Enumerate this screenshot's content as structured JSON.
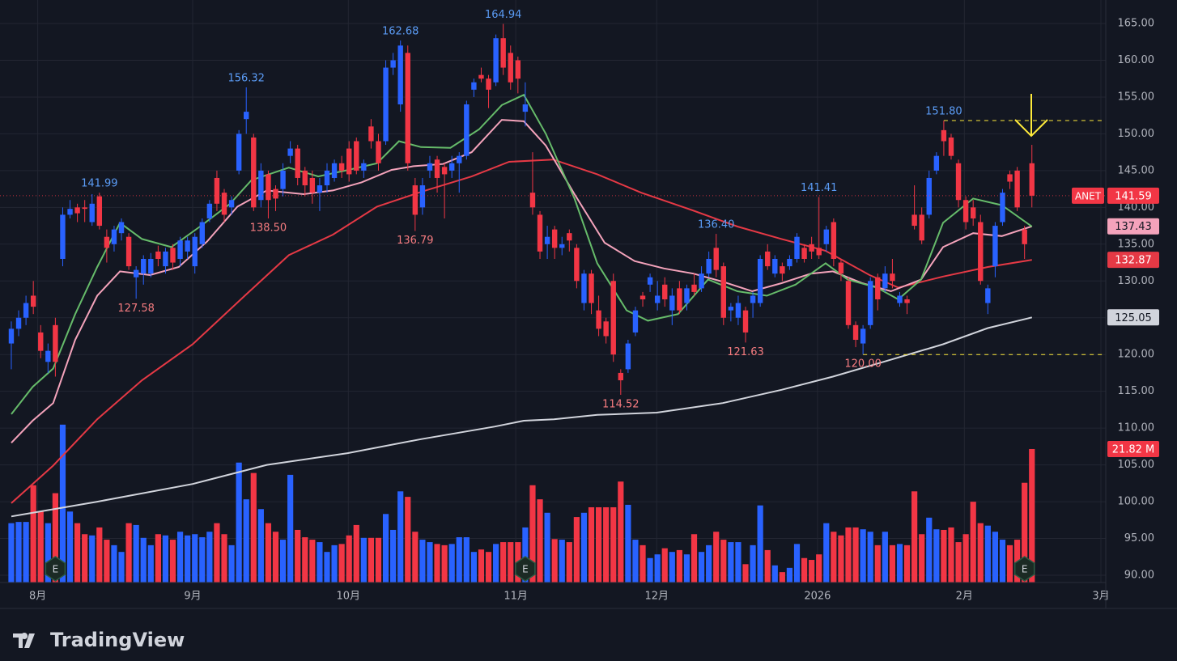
{
  "chart_data": {
    "type": "candlestick",
    "symbol": "ANET",
    "up_color": "#2962ff",
    "down_color": "#f23645",
    "xlim": [
      -1.54,
      149.06
    ],
    "xticks": [
      {
        "value": 3.6,
        "label": "8月"
      },
      {
        "value": 24.7,
        "label": "9月"
      },
      {
        "value": 45.9,
        "label": "10月"
      },
      {
        "value": 68.7,
        "label": "11月"
      },
      {
        "value": 87.9,
        "label": "12月"
      },
      {
        "value": 109.8,
        "label": "2026"
      },
      {
        "value": 129.8,
        "label": "2月"
      },
      {
        "value": 148.4,
        "label": "3月"
      }
    ],
    "ylim": [
      89.01,
      168.19
    ],
    "yticks": [
      {
        "value": 90,
        "label": "90.00"
      },
      {
        "value": 95,
        "label": "95.00"
      },
      {
        "value": 100,
        "label": "100.00"
      },
      {
        "value": 105,
        "label": "105.00"
      },
      {
        "value": 110,
        "label": "110.00"
      },
      {
        "value": 115,
        "label": "115.00"
      },
      {
        "value": 120,
        "label": "120.00"
      },
      {
        "value": 125,
        "label": "125.00"
      },
      {
        "value": 130,
        "label": "130.00"
      },
      {
        "value": 135,
        "label": "135.00"
      },
      {
        "value": 140,
        "label": "140.00"
      },
      {
        "value": 145,
        "label": "145.00"
      },
      {
        "value": 150,
        "label": "150.00"
      },
      {
        "value": 155,
        "label": "155.00"
      },
      {
        "value": 160,
        "label": "160.00"
      },
      {
        "value": 165,
        "label": "165.00"
      }
    ],
    "grid": true,
    "open": [
      121.5,
      123.5,
      125,
      128,
      123,
      119,
      124,
      133,
      139,
      140,
      140,
      138,
      141.5,
      136,
      135,
      136.5,
      136,
      130.5,
      131,
      131,
      134,
      132,
      134.5,
      133,
      134,
      132,
      135,
      138.5,
      144,
      142,
      140,
      145,
      152,
      149.5,
      141,
      144.5,
      142.5,
      142.5,
      147,
      148,
      145,
      144,
      142,
      143,
      144,
      146,
      148,
      149,
      145,
      151,
      149,
      149,
      159,
      154,
      161,
      143,
      140,
      145,
      146.5,
      145.5,
      145,
      146,
      147,
      156,
      158,
      157.5,
      157,
      163,
      161,
      160,
      153,
      142,
      139,
      135,
      137,
      134.5,
      136.5,
      134.5,
      127,
      131,
      126,
      124.5,
      130,
      117.5,
      118,
      123,
      128,
      129.5,
      127,
      129.5,
      126,
      129,
      127,
      129.5,
      129,
      131,
      134.5,
      132,
      126,
      125,
      126,
      127,
      127,
      134,
      131,
      132,
      132,
      133,
      134.5,
      135,
      134.5,
      135,
      138,
      132.5,
      130,
      124,
      121.5,
      124,
      130.5,
      129,
      131,
      127,
      127.5,
      139,
      139,
      139,
      145,
      150.5,
      149.5,
      146,
      141,
      140,
      138,
      127,
      132,
      138,
      144.5,
      145,
      137,
      146
    ],
    "high": [
      124.5,
      126,
      128,
      130,
      124,
      121.5,
      125,
      140,
      141,
      140.5,
      141,
      141.8,
      141.99,
      137,
      137.5,
      138.5,
      136.5,
      132,
      133.5,
      133.8,
      134.8,
      134.5,
      135,
      136,
      136,
      136.5,
      138.5,
      141,
      145,
      142.5,
      141.5,
      150.5,
      156.32,
      150,
      146,
      145,
      143,
      146,
      149,
      148.5,
      145.5,
      145,
      144,
      146,
      146.5,
      147,
      149,
      149.5,
      146.5,
      152,
      150,
      160,
      161,
      162.68,
      162,
      144,
      144,
      147,
      147,
      146,
      147,
      147.5,
      154.5,
      157.5,
      159,
      158,
      163.5,
      164.94,
      162,
      160.5,
      157,
      147.5,
      139.5,
      137.5,
      137.5,
      136,
      137,
      135,
      131.5,
      131.5,
      128,
      125,
      131,
      118,
      122,
      126.5,
      128.5,
      131,
      130,
      130.5,
      129,
      130,
      129.5,
      131,
      132,
      134,
      136.4,
      132.5,
      127,
      128,
      126.5,
      128.5,
      133.5,
      135,
      133.5,
      132.5,
      133.5,
      136.5,
      135,
      136,
      141.41,
      137.5,
      138.5,
      133,
      130.5,
      124.5,
      124,
      130.5,
      131,
      132,
      133,
      128.5,
      128,
      143,
      140,
      145,
      147.5,
      151.8,
      150,
      146.5,
      141.5,
      141,
      139,
      129.5,
      138,
      142.5,
      145,
      145.5,
      137.5,
      148.5
    ],
    "low": [
      118,
      122.5,
      124,
      125.5,
      119.5,
      117.5,
      117,
      132,
      138.5,
      138,
      138,
      137.5,
      137,
      132.5,
      134,
      135.5,
      131.5,
      127.58,
      129.5,
      130.5,
      132,
      131,
      131.5,
      132,
      133,
      131,
      134.5,
      138,
      139.5,
      138,
      139,
      144.5,
      150,
      139.5,
      140,
      138.5,
      139.5,
      141.5,
      146,
      143,
      141.5,
      140.5,
      139.5,
      142,
      143.5,
      144,
      143.5,
      144.5,
      144,
      148,
      145,
      148.5,
      158,
      153,
      145,
      136.79,
      139,
      144,
      142,
      138.5,
      144,
      142,
      146.5,
      155,
      157,
      153.5,
      156.5,
      158,
      156,
      155.5,
      151,
      139,
      133,
      133,
      133,
      133.5,
      134,
      129,
      126,
      125.5,
      122.5,
      121.5,
      119,
      114.52,
      117.5,
      122.5,
      126.5,
      128.5,
      126,
      126.5,
      124,
      125.5,
      126,
      128,
      128.5,
      130.5,
      130.5,
      124,
      124.5,
      124,
      121.63,
      125,
      126.5,
      131.5,
      130.5,
      130,
      131.5,
      132.5,
      132.5,
      133,
      133,
      134,
      132,
      130,
      123.5,
      121,
      120,
      123.5,
      126,
      128.5,
      129,
      126.5,
      125.5,
      137,
      135,
      138.5,
      144.5,
      147,
      146.5,
      140,
      137,
      137.5,
      129.5,
      125.5,
      130.5,
      137.5,
      142.5,
      139.5,
      133,
      140
    ],
    "close": [
      123.5,
      125,
      127,
      126.5,
      120.5,
      120.5,
      119,
      139,
      139.8,
      139.2,
      139.8,
      140.5,
      137.5,
      134.5,
      137,
      138,
      132,
      131.5,
      133,
      133,
      133,
      134,
      132.5,
      135.5,
      135.5,
      136,
      138,
      140.5,
      140.5,
      139,
      141,
      150,
      153,
      140,
      145,
      141,
      141.2,
      145,
      148,
      144,
      143,
      142,
      143,
      145,
      146,
      145,
      144.5,
      145,
      146,
      149,
      146,
      159,
      160,
      162,
      146,
      139,
      143,
      146,
      144,
      144.5,
      146,
      147,
      154,
      157,
      157.5,
      156,
      163,
      159,
      157,
      157.5,
      154,
      140,
      134,
      136,
      134.5,
      135,
      135.5,
      130,
      131,
      127,
      123.5,
      122.5,
      120,
      116.5,
      121.5,
      126,
      127.5,
      130.5,
      128,
      127.5,
      128,
      126,
      129,
      128.5,
      131,
      133,
      131.5,
      125,
      126.5,
      127,
      123,
      128,
      133,
      132,
      133,
      131,
      133,
      136,
      133,
      134,
      133.5,
      137,
      133,
      131,
      124,
      122,
      123.5,
      130,
      127.5,
      131,
      130,
      128,
      127,
      137.5,
      135.5,
      144,
      147,
      149,
      147,
      141,
      138,
      138.5,
      130,
      129,
      137.5,
      142,
      143.5,
      140,
      135,
      141.59
    ],
    "volume": {
      "y2lim": [
        0,
        95.2
      ],
      "tag": "21.82 M",
      "values": [
        9.7,
        9.9,
        9.9,
        15.9,
        11.6,
        9.7,
        14.6,
        25.8,
        11.6,
        9.7,
        7.9,
        7.7,
        9,
        7,
        6.1,
        5,
        9.7,
        9.4,
        7.3,
        6.1,
        7.9,
        7.7,
        7,
        8.3,
        7.7,
        7.9,
        7.4,
        8.3,
        9.7,
        7.9,
        6.1,
        19.6,
        13.6,
        17.9,
        12,
        9.7,
        8.3,
        7,
        17.6,
        8.6,
        7.4,
        7,
        6.6,
        5,
        6.1,
        6.3,
        7.7,
        9.4,
        7.3,
        7.3,
        7.3,
        11.2,
        8.6,
        14.9,
        14,
        8.3,
        7,
        6.6,
        6.3,
        6.1,
        6.3,
        7.4,
        7.4,
        5,
        5.4,
        5,
        6.3,
        6.6,
        6.6,
        6.6,
        9,
        15.9,
        13.6,
        11.4,
        7.1,
        7,
        6.6,
        10.7,
        11.4,
        12.3,
        12.3,
        12.3,
        12.3,
        16.5,
        12.7,
        7,
        6.1,
        4,
        4.6,
        5.6,
        5,
        5.3,
        4.6,
        7.9,
        5,
        6.1,
        8.3,
        7,
        6.6,
        6.6,
        3,
        6.1,
        12.6,
        5.3,
        2.8,
        1.7,
        2.4,
        6.3,
        4,
        3.7,
        4.6,
        9.7,
        8.3,
        7.7,
        9,
        9,
        8.7,
        8.3,
        6.1,
        8.3,
        6.1,
        6.3,
        6.1,
        14.9,
        7.9,
        10.6,
        8.7,
        8.6,
        9,
        6.6,
        7.9,
        13.2,
        9.7,
        9.3,
        8.3,
        7,
        6.1,
        7,
        16.3,
        21.82
      ]
    },
    "moving_averages": [
      {
        "color": "#d1d4dc",
        "tag_text": "#131722",
        "x": [
          0,
          11.7,
          24.7,
          34.8,
          45.8,
          55.8,
          65.8,
          69.8,
          73.9,
          79.8,
          87.9,
          96.9,
          104.9,
          111.9,
          119.8,
          126.9,
          133,
          139
        ],
        "values": [
          98,
          100,
          102.4,
          105,
          106.6,
          108.5,
          110.2,
          111,
          111.2,
          111.8,
          112.1,
          113.4,
          115.2,
          117,
          119.3,
          121.4,
          123.6,
          125.05
        ]
      },
      {
        "color": "#e53945",
        "tag_text": "#ffffff",
        "x": [
          0,
          5.7,
          11.7,
          17.8,
          24.7,
          31.8,
          37.8,
          43.8,
          49.8,
          55.8,
          62.7,
          67.8,
          73.8,
          79.8,
          85.8,
          92.8,
          98.9,
          104.9,
          110.9,
          116.9,
          120.8,
          126.9,
          133,
          139
        ],
        "values": [
          99.8,
          104.9,
          111.2,
          116.5,
          121.4,
          128,
          133.5,
          136.3,
          140.1,
          142.1,
          144.2,
          146.2,
          146.5,
          144.5,
          142,
          139.6,
          137.4,
          135.7,
          134.1,
          130.8,
          129.1,
          130.6,
          131.9,
          132.87
        ]
      },
      {
        "color": "#f4a3bb",
        "tag_text": "#131722",
        "x": [
          0,
          2.9,
          5.7,
          8.7,
          11.7,
          14.8,
          18.9,
          22.8,
          26.7,
          30.8,
          34.8,
          39.8,
          43.8,
          47.7,
          51.8,
          54.8,
          58.8,
          62.7,
          66.8,
          69.8,
          72.8,
          76.7,
          80.8,
          84.9,
          88.9,
          92.9,
          96.9,
          100.9,
          104.9,
          108.9,
          111.9,
          115.9,
          119.8,
          123.9,
          126.9,
          131,
          134.9,
          139
        ],
        "values": [
          108,
          111,
          113.4,
          122,
          128,
          131.3,
          130.8,
          131.9,
          135.4,
          140.1,
          142.3,
          141.8,
          142.3,
          143.4,
          145.1,
          145.6,
          145.9,
          147.5,
          151.9,
          151.7,
          148.4,
          141.8,
          135.2,
          132.7,
          131.7,
          131,
          129.9,
          128.6,
          129.7,
          131,
          131.3,
          129.7,
          128.6,
          130.2,
          134.6,
          136.5,
          136.1,
          137.43
        ]
      },
      {
        "color": "#66bb6a",
        "x": [
          0,
          2.9,
          5.7,
          8.7,
          11.7,
          14.8,
          17.8,
          21.8,
          25.7,
          29.8,
          32.7,
          37.8,
          41.8,
          45.9,
          49.8,
          52.8,
          55.8,
          59.8,
          63.7,
          66.8,
          69.8,
          72.8,
          76.7,
          79.8,
          83.8,
          86.7,
          90.8,
          94.9,
          98.9,
          102.9,
          106.8,
          110.9,
          113.9,
          117.9,
          120.8,
          123.9,
          126.9,
          131,
          134.9,
          139
        ],
        "values": [
          111.9,
          115.6,
          118.1,
          125.5,
          131.9,
          137.9,
          135.7,
          134.6,
          137.4,
          140.5,
          143.7,
          145.4,
          144.2,
          145.1,
          146,
          149,
          148.2,
          148.1,
          150.6,
          153.9,
          155.3,
          150,
          141.2,
          132.4,
          126,
          124.6,
          125.5,
          130.2,
          128.6,
          128,
          129.5,
          132.4,
          130.2,
          129.1,
          127.5,
          130.2,
          137.9,
          141.2,
          140.3,
          137.4
        ]
      }
    ],
    "annotations": [
      {
        "index": 12,
        "label": "141.99",
        "position": "above",
        "color": "#5b9cf6"
      },
      {
        "index": 32,
        "label": "156.32",
        "position": "above",
        "color": "#5b9cf6"
      },
      {
        "index": 53,
        "label": "162.68",
        "position": "above",
        "color": "#5b9cf6"
      },
      {
        "index": 67,
        "label": "164.94",
        "position": "above",
        "color": "#5b9cf6"
      },
      {
        "index": 96,
        "label": "136.40",
        "position": "above",
        "color": "#5b9cf6"
      },
      {
        "index": 110,
        "label": "141.41",
        "position": "above",
        "color": "#5b9cf6"
      },
      {
        "index": 127,
        "label": "151.80",
        "position": "above",
        "color": "#5b9cf6",
        "extend": true
      },
      {
        "index": 17,
        "label": "127.58",
        "position": "below",
        "color": "#f77c80"
      },
      {
        "index": 35,
        "label": "138.50",
        "position": "below",
        "color": "#f77c80"
      },
      {
        "index": 55,
        "label": "136.79",
        "position": "below",
        "color": "#f77c80"
      },
      {
        "index": 83,
        "label": "114.52",
        "position": "below",
        "color": "#f77c80"
      },
      {
        "index": 100,
        "label": "121.63",
        "position": "below",
        "color": "#f77c80"
      },
      {
        "index": 116,
        "label": "120.00",
        "position": "below",
        "color": "#f77c80",
        "extend": true
      }
    ],
    "earnings": {
      "label": "E",
      "x": [
        6,
        70,
        138
      ]
    }
  },
  "footer": {
    "brand": "TradingView"
  }
}
